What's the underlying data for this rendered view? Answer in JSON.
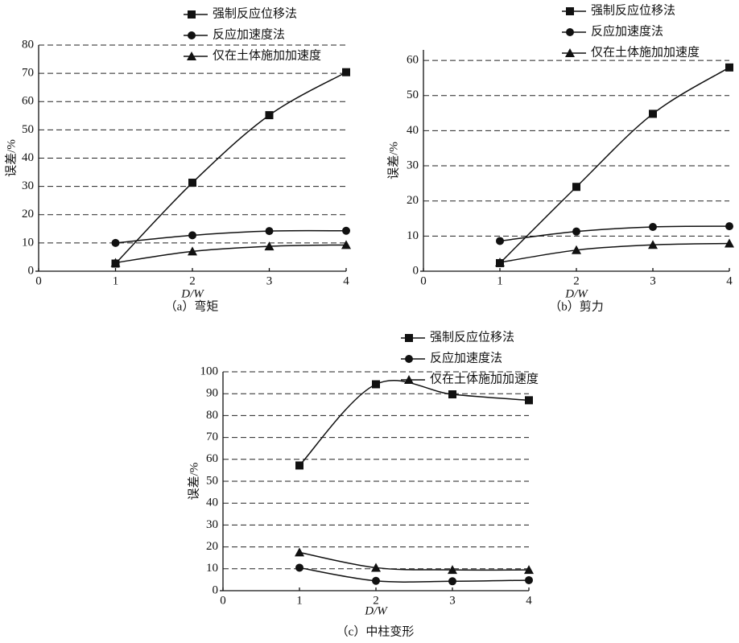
{
  "chart_data": [
    {
      "type": "line",
      "title": "（a）弯矩",
      "xlabel": "D/W",
      "ylabel": "误差/%",
      "x": [
        1,
        2,
        3,
        4
      ],
      "xlim": [
        0,
        4
      ],
      "xticks": [
        0,
        1,
        2,
        3,
        4
      ],
      "ylim": [
        0,
        80
      ],
      "yticks": [
        0,
        10,
        20,
        30,
        40,
        50,
        60,
        70,
        80
      ],
      "grid": true,
      "legend": "upper right",
      "series": [
        {
          "name": "强制反应位移法",
          "marker": "square",
          "color": "#111111",
          "values": [
            2.7,
            31.3,
            55.2,
            70.4
          ]
        },
        {
          "name": "反应加速度法",
          "marker": "circle",
          "color": "#111111",
          "values": [
            10,
            12.7,
            14.2,
            14.3
          ]
        },
        {
          "name": "仅在土体施加加速度",
          "marker": "triangle",
          "color": "#111111",
          "values": [
            3,
            7,
            8.8,
            9.3
          ]
        }
      ]
    },
    {
      "type": "line",
      "title": "（b）剪力",
      "xlabel": "D/W",
      "ylabel": "误差/%",
      "x": [
        1,
        2,
        3,
        4
      ],
      "xlim": [
        0,
        4
      ],
      "xticks": [
        0,
        1,
        2,
        3,
        4
      ],
      "ylim": [
        0,
        63
      ],
      "yticks": [
        0,
        10,
        20,
        30,
        40,
        50,
        60
      ],
      "grid": true,
      "legend": "upper right",
      "series": [
        {
          "name": "强制反应位移法",
          "marker": "square",
          "color": "#111111",
          "values": [
            2.3,
            24,
            44.8,
            58
          ]
        },
        {
          "name": "反应加速度法",
          "marker": "circle",
          "color": "#111111",
          "values": [
            8.6,
            11.3,
            12.6,
            12.8
          ]
        },
        {
          "name": "仅在土体施加加速度",
          "marker": "triangle",
          "color": "#111111",
          "values": [
            2.5,
            6,
            7.5,
            7.9
          ]
        }
      ]
    },
    {
      "type": "line",
      "title": "（c）中柱变形",
      "xlabel": "D/W",
      "ylabel": "误差/%",
      "x": [
        1,
        2,
        3,
        4
      ],
      "xlim": [
        0,
        4
      ],
      "xticks": [
        0,
        1,
        2,
        3,
        4
      ],
      "ylim": [
        0,
        100
      ],
      "yticks": [
        0,
        10,
        20,
        30,
        40,
        50,
        60,
        70,
        80,
        90,
        100
      ],
      "grid": true,
      "legend": "upper right",
      "series": [
        {
          "name": "强制反应位移法",
          "marker": "square",
          "color": "#111111",
          "values": [
            57.2,
            94.3,
            89.7,
            87
          ]
        },
        {
          "name": "反应加速度法",
          "marker": "circle",
          "color": "#111111",
          "values": [
            10.5,
            4.5,
            4.3,
            4.8
          ]
        },
        {
          "name": "仅在土体施加加速度",
          "marker": "triangle",
          "color": "#111111",
          "values": [
            17.5,
            10.5,
            9.5,
            9.5
          ]
        }
      ]
    }
  ]
}
